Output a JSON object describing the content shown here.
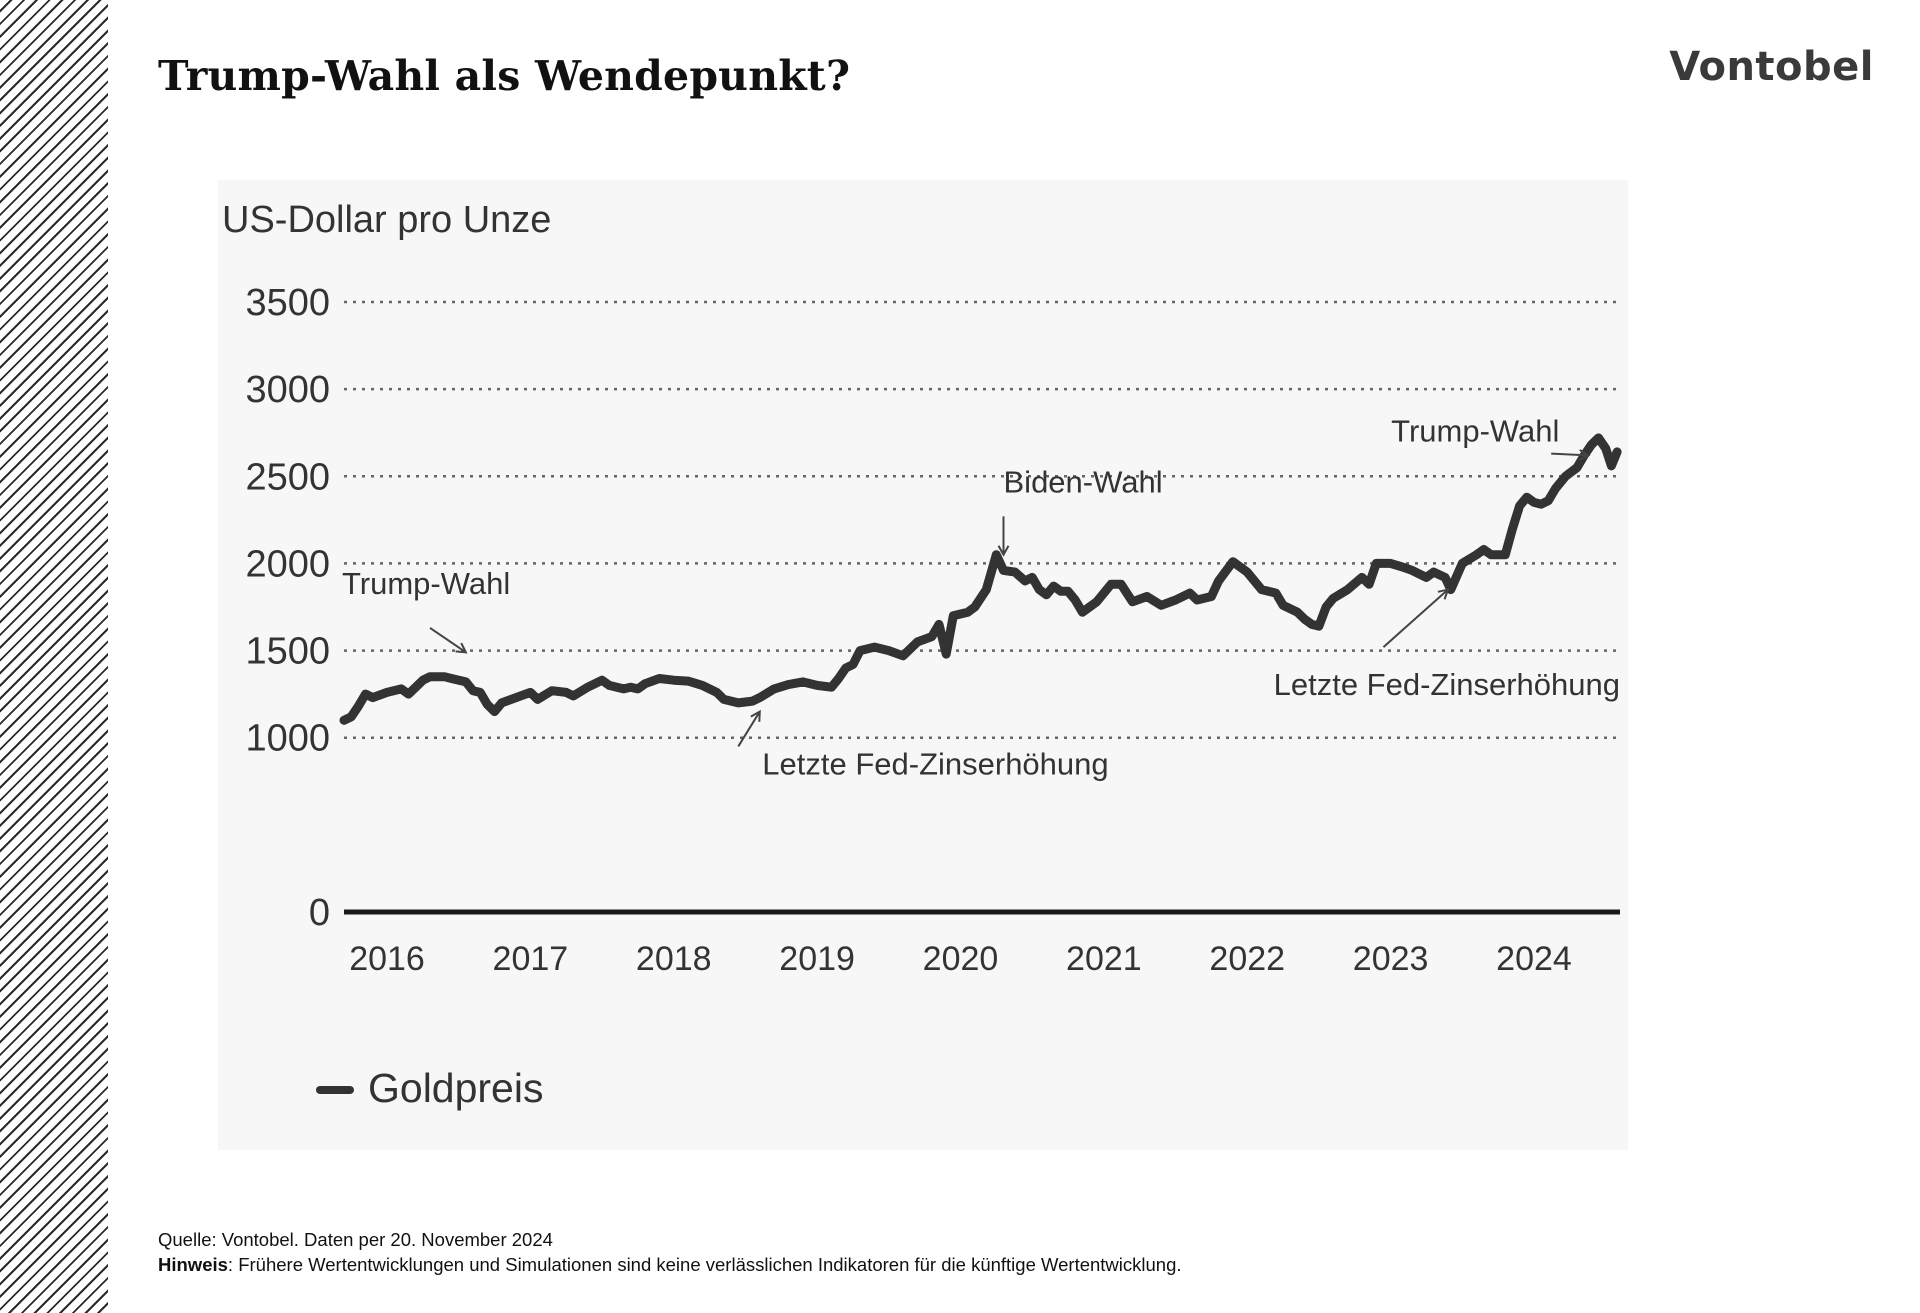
{
  "page": {
    "title": "Trump-Wahl als Wendepunkt?",
    "brand": "Vontobel",
    "source_text": "Quelle: Vontobel. Daten per 20. November 2024",
    "note_label": "Hinweis",
    "note_text": ": Frühere Wertentwicklungen und Simulationen sind keine verlässlichen Indikatoren für die künftige Wertentwicklung."
  },
  "chart_data": {
    "type": "line",
    "ylabel": "US-Dollar pro Unze",
    "ylim": [
      0,
      3500
    ],
    "yticks": [
      "0",
      "1000",
      "1500",
      "2000",
      "2500",
      "3000",
      "3500"
    ],
    "xlim": [
      2016.0,
      2024.9
    ],
    "xticks": [
      {
        "label": "2016",
        "value": 2016.3
      },
      {
        "label": "2017",
        "value": 2017.3
      },
      {
        "label": "2018",
        "value": 2018.3
      },
      {
        "label": "2019",
        "value": 2019.3
      },
      {
        "label": "2020",
        "value": 2020.3
      },
      {
        "label": "2021",
        "value": 2021.3
      },
      {
        "label": "2022",
        "value": 2022.3
      },
      {
        "label": "2023",
        "value": 2023.3
      },
      {
        "label": "2024",
        "value": 2024.3
      }
    ],
    "grid": "horizontal-dotted",
    "legend": {
      "placement": "bottom-left"
    },
    "series": [
      {
        "name": "Goldpreis",
        "color": "#333333",
        "points": [
          [
            2016.0,
            1100
          ],
          [
            2016.05,
            1120
          ],
          [
            2016.1,
            1180
          ],
          [
            2016.15,
            1250
          ],
          [
            2016.2,
            1230
          ],
          [
            2016.3,
            1260
          ],
          [
            2016.4,
            1280
          ],
          [
            2016.45,
            1250
          ],
          [
            2016.55,
            1330
          ],
          [
            2016.6,
            1350
          ],
          [
            2016.7,
            1350
          ],
          [
            2016.75,
            1340
          ],
          [
            2016.85,
            1320
          ],
          [
            2016.9,
            1270
          ],
          [
            2016.95,
            1260
          ],
          [
            2017.0,
            1190
          ],
          [
            2017.05,
            1150
          ],
          [
            2017.1,
            1200
          ],
          [
            2017.2,
            1230
          ],
          [
            2017.3,
            1260
          ],
          [
            2017.35,
            1220
          ],
          [
            2017.45,
            1270
          ],
          [
            2017.55,
            1260
          ],
          [
            2017.6,
            1240
          ],
          [
            2017.7,
            1290
          ],
          [
            2017.8,
            1330
          ],
          [
            2017.85,
            1300
          ],
          [
            2017.95,
            1280
          ],
          [
            2018.0,
            1290
          ],
          [
            2018.05,
            1280
          ],
          [
            2018.1,
            1310
          ],
          [
            2018.2,
            1340
          ],
          [
            2018.3,
            1330
          ],
          [
            2018.4,
            1325
          ],
          [
            2018.5,
            1300
          ],
          [
            2018.6,
            1260
          ],
          [
            2018.65,
            1220
          ],
          [
            2018.75,
            1200
          ],
          [
            2018.85,
            1210
          ],
          [
            2018.9,
            1230
          ],
          [
            2019.0,
            1280
          ],
          [
            2019.1,
            1305
          ],
          [
            2019.2,
            1320
          ],
          [
            2019.3,
            1300
          ],
          [
            2019.4,
            1290
          ],
          [
            2019.45,
            1340
          ],
          [
            2019.5,
            1400
          ],
          [
            2019.55,
            1420
          ],
          [
            2019.6,
            1500
          ],
          [
            2019.7,
            1520
          ],
          [
            2019.8,
            1500
          ],
          [
            2019.9,
            1470
          ],
          [
            2020.0,
            1550
          ],
          [
            2020.1,
            1580
          ],
          [
            2020.15,
            1650
          ],
          [
            2020.2,
            1480
          ],
          [
            2020.25,
            1700
          ],
          [
            2020.35,
            1720
          ],
          [
            2020.4,
            1750
          ],
          [
            2020.48,
            1850
          ],
          [
            2020.55,
            2050
          ],
          [
            2020.6,
            1960
          ],
          [
            2020.68,
            1950
          ],
          [
            2020.75,
            1900
          ],
          [
            2020.8,
            1920
          ],
          [
            2020.85,
            1850
          ],
          [
            2020.9,
            1820
          ],
          [
            2020.95,
            1870
          ],
          [
            2021.0,
            1840
          ],
          [
            2021.05,
            1840
          ],
          [
            2021.1,
            1790
          ],
          [
            2021.15,
            1720
          ],
          [
            2021.25,
            1780
          ],
          [
            2021.35,
            1880
          ],
          [
            2021.42,
            1880
          ],
          [
            2021.5,
            1780
          ],
          [
            2021.6,
            1810
          ],
          [
            2021.7,
            1760
          ],
          [
            2021.8,
            1790
          ],
          [
            2021.9,
            1830
          ],
          [
            2021.95,
            1790
          ],
          [
            2022.05,
            1810
          ],
          [
            2022.1,
            1900
          ],
          [
            2022.2,
            2010
          ],
          [
            2022.3,
            1950
          ],
          [
            2022.4,
            1850
          ],
          [
            2022.5,
            1830
          ],
          [
            2022.55,
            1760
          ],
          [
            2022.65,
            1720
          ],
          [
            2022.7,
            1680
          ],
          [
            2022.75,
            1650
          ],
          [
            2022.8,
            1640
          ],
          [
            2022.85,
            1750
          ],
          [
            2022.9,
            1800
          ],
          [
            2023.0,
            1850
          ],
          [
            2023.1,
            1920
          ],
          [
            2023.15,
            1880
          ],
          [
            2023.2,
            2000
          ],
          [
            2023.3,
            2000
          ],
          [
            2023.38,
            1980
          ],
          [
            2023.45,
            1960
          ],
          [
            2023.55,
            1920
          ],
          [
            2023.6,
            1950
          ],
          [
            2023.68,
            1920
          ],
          [
            2023.72,
            1850
          ],
          [
            2023.8,
            2000
          ],
          [
            2023.9,
            2050
          ],
          [
            2023.95,
            2080
          ],
          [
            2024.0,
            2050
          ],
          [
            2024.1,
            2050
          ],
          [
            2024.15,
            2200
          ],
          [
            2024.2,
            2330
          ],
          [
            2024.25,
            2380
          ],
          [
            2024.3,
            2350
          ],
          [
            2024.35,
            2340
          ],
          [
            2024.4,
            2360
          ],
          [
            2024.45,
            2430
          ],
          [
            2024.52,
            2500
          ],
          [
            2024.6,
            2550
          ],
          [
            2024.65,
            2620
          ],
          [
            2024.7,
            2680
          ],
          [
            2024.75,
            2720
          ],
          [
            2024.8,
            2660
          ],
          [
            2024.84,
            2560
          ],
          [
            2024.88,
            2640
          ]
        ]
      }
    ],
    "annotations": [
      {
        "text": "Trump-Wahl",
        "x": 2016.85,
        "y": 1500,
        "text_anchor": "top-left",
        "arrow_from": [
          2016.6,
          1630
        ],
        "arrow_to": [
          2016.85,
          1490
        ]
      },
      {
        "text": "Letzte Fed-Zinserhöhung",
        "x": 2018.9,
        "y": 900,
        "text_anchor": "right",
        "arrow_from": [
          2018.75,
          950
        ],
        "arrow_to": [
          2018.9,
          1150
        ]
      },
      {
        "text": "Biden-Wahl",
        "x": 2020.6,
        "y": 2370,
        "text_anchor": "top",
        "arrow_from": [
          2020.6,
          2270
        ],
        "arrow_to": [
          2020.6,
          2050
        ]
      },
      {
        "text": "Letzte Fed-Zinserhöhung",
        "x": 2023.55,
        "y": 1500,
        "text_anchor": "bottom",
        "arrow_from": [
          2023.25,
          1520
        ],
        "arrow_to": [
          2023.7,
          1850
        ]
      },
      {
        "text": "Trump-Wahl",
        "x": 2024.7,
        "y": 2630,
        "text_anchor": "left",
        "arrow_from": [
          2024.42,
          2630
        ],
        "arrow_to": [
          2024.68,
          2620
        ]
      }
    ]
  }
}
